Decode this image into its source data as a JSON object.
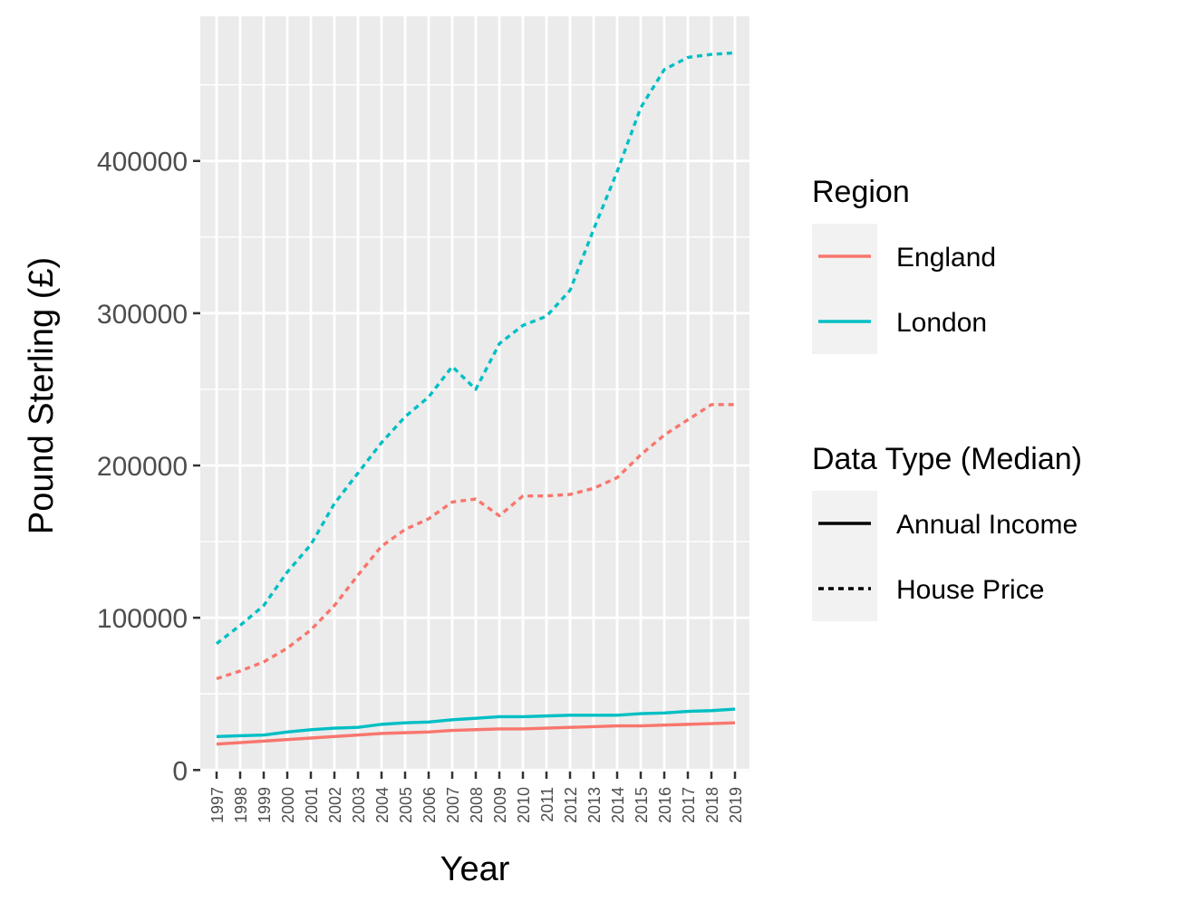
{
  "chart_data": {
    "type": "line",
    "xlabel": "Year",
    "ylabel": "Pound Sterling (£)",
    "x": [
      "1997",
      "1998",
      "1999",
      "2000",
      "2001",
      "2002",
      "2003",
      "2004",
      "2005",
      "2006",
      "2007",
      "2008",
      "2009",
      "2010",
      "2011",
      "2012",
      "2013",
      "2014",
      "2015",
      "2016",
      "2017",
      "2018",
      "2019"
    ],
    "ylim": [
      -1000,
      495000
    ],
    "yticks": [
      0,
      100000,
      200000,
      300000,
      400000
    ],
    "ytick_labels": [
      "0",
      "100000",
      "200000",
      "300000",
      "400000"
    ],
    "grid": true,
    "legend_placement": "right",
    "series": [
      {
        "region": "England",
        "data_type": "Annual Income",
        "color": "#F8766D",
        "linestyle": "solid",
        "values": [
          17000,
          18000,
          19000,
          20000,
          21000,
          22000,
          23000,
          24000,
          24500,
          25000,
          26000,
          26500,
          27000,
          27000,
          27500,
          28000,
          28500,
          29000,
          29000,
          29500,
          30000,
          30500,
          31000
        ]
      },
      {
        "region": "London",
        "data_type": "Annual Income",
        "color": "#00BFC4",
        "linestyle": "solid",
        "values": [
          22000,
          22500,
          23000,
          25000,
          26500,
          27500,
          28000,
          30000,
          31000,
          31500,
          33000,
          34000,
          35000,
          35000,
          35500,
          36000,
          36000,
          36000,
          37000,
          37500,
          38500,
          39000,
          40000
        ]
      },
      {
        "region": "England",
        "data_type": "House Price",
        "color": "#F8766D",
        "linestyle": "dashed",
        "values": [
          60000,
          65000,
          71000,
          80000,
          92000,
          108000,
          128000,
          147000,
          158000,
          165000,
          176000,
          178000,
          167000,
          180000,
          180000,
          181000,
          185000,
          192000,
          207000,
          220000,
          230000,
          240000,
          240000
        ]
      },
      {
        "region": "London",
        "data_type": "House Price",
        "color": "#00BFC4",
        "linestyle": "dashed",
        "values": [
          83000,
          95000,
          108000,
          130000,
          148000,
          175000,
          195000,
          215000,
          232000,
          245000,
          265000,
          250000,
          280000,
          292000,
          298000,
          315000,
          355000,
          393000,
          435000,
          460000,
          468000,
          470000,
          471000
        ]
      }
    ],
    "legends": [
      {
        "title": "Region",
        "items": [
          {
            "label": "England",
            "color": "#F8766D",
            "linestyle": "solid"
          },
          {
            "label": "London",
            "color": "#00BFC4",
            "linestyle": "solid"
          }
        ]
      },
      {
        "title": "Data Type (Median)",
        "items": [
          {
            "label": "Annual Income",
            "color": "#000000",
            "linestyle": "solid"
          },
          {
            "label": "House Price",
            "color": "#000000",
            "linestyle": "dashed"
          }
        ]
      }
    ],
    "panel_background": "#EBEBEB",
    "grid_color": "#FFFFFF"
  }
}
